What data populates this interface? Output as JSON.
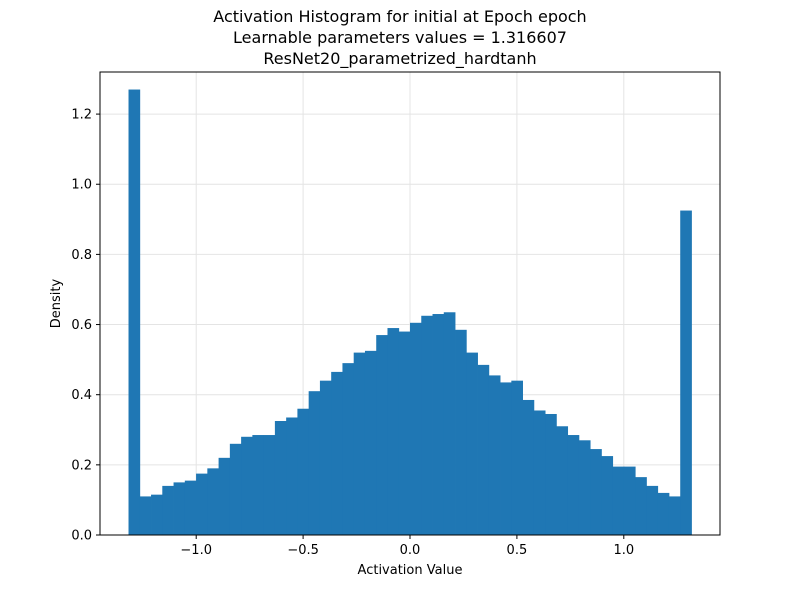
{
  "chart_data": {
    "type": "bar",
    "title_lines": [
      "Activation Histogram for initial at Epoch epoch",
      "Learnable parameters values = 1.316607",
      "ResNet20_parametrized_hardtanh"
    ],
    "xlabel": "Activation Value",
    "ylabel": "Density",
    "xlim": [
      -1.45,
      1.45
    ],
    "ylim": [
      0,
      1.32
    ],
    "x_ticks": [
      -1.0,
      -0.5,
      0.0,
      0.5,
      1.0
    ],
    "x_tick_labels": [
      "−1.0",
      "−0.5",
      "0.0",
      "0.5",
      "1.0"
    ],
    "y_ticks": [
      0.0,
      0.2,
      0.4,
      0.6,
      0.8,
      1.0,
      1.2
    ],
    "y_tick_labels": [
      "0.0",
      "0.2",
      "0.4",
      "0.6",
      "0.8",
      "1.0",
      "1.2"
    ],
    "grid": true,
    "bar_color": "#1f77b4",
    "bin_range": [
      -1.316607,
      1.316607
    ],
    "bin_count": 50,
    "values": [
      1.27,
      0.11,
      0.115,
      0.14,
      0.15,
      0.155,
      0.175,
      0.19,
      0.22,
      0.26,
      0.28,
      0.285,
      0.285,
      0.325,
      0.335,
      0.36,
      0.41,
      0.44,
      0.465,
      0.49,
      0.52,
      0.525,
      0.57,
      0.59,
      0.58,
      0.605,
      0.625,
      0.63,
      0.635,
      0.585,
      0.52,
      0.485,
      0.455,
      0.435,
      0.44,
      0.385,
      0.355,
      0.345,
      0.31,
      0.285,
      0.27,
      0.245,
      0.225,
      0.195,
      0.195,
      0.165,
      0.14,
      0.12,
      0.11,
      0.925
    ]
  }
}
